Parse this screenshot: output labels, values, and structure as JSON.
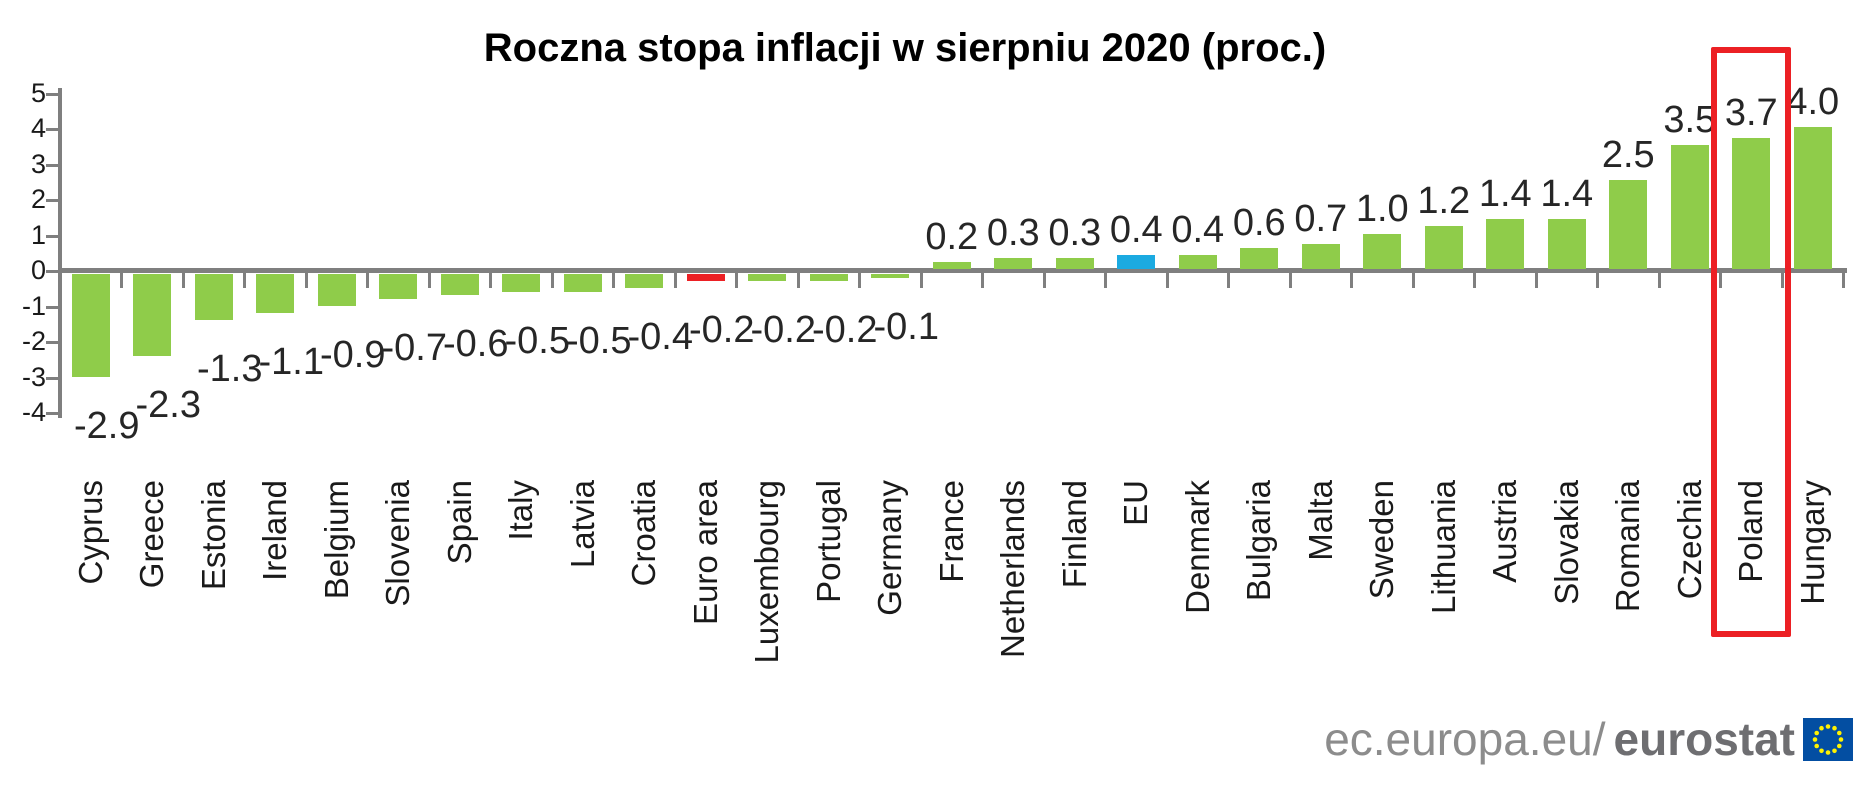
{
  "page": {
    "title": "Roczna stopa inflacji w sierpniu 2020 (proc.)"
  },
  "source_logo": {
    "prefix": "ec.europa.eu/",
    "name": "eurostat",
    "flag_icon": "eu-flag-icon",
    "flag_blue": "#034ea2",
    "flag_star_yellow": "#fff200"
  },
  "chart_data": {
    "type": "bar",
    "title": "Roczna stopa inflacji w sierpniu 2020 (proc.)",
    "xlabel": "",
    "ylabel": "",
    "ylim": [
      -4,
      5
    ],
    "yticks": [
      5,
      4,
      3,
      2,
      1,
      0,
      -1,
      -2,
      -3,
      -4
    ],
    "grid": false,
    "legend": false,
    "value_label_decimals": 1,
    "categories": [
      "Cyprus",
      "Greece",
      "Estonia",
      "Ireland",
      "Belgium",
      "Slovenia",
      "Spain",
      "Italy",
      "Latvia",
      "Croatia",
      "Euro area",
      "Luxembourg",
      "Portugal",
      "Germany",
      "France",
      "Netherlands",
      "Finland",
      "EU",
      "Denmark",
      "Bulgaria",
      "Malta",
      "Sweden",
      "Lithuania",
      "Austria",
      "Slovakia",
      "Romania",
      "Czechia",
      "Poland",
      "Hungary"
    ],
    "values": [
      -2.9,
      -2.3,
      -1.3,
      -1.1,
      -0.9,
      -0.7,
      -0.6,
      -0.5,
      -0.5,
      -0.4,
      -0.2,
      -0.2,
      -0.2,
      -0.1,
      0.2,
      0.3,
      0.3,
      0.4,
      0.4,
      0.6,
      0.7,
      1.0,
      1.2,
      1.4,
      1.4,
      2.5,
      3.5,
      3.7,
      4.0
    ],
    "bar_color_default": "#8fcc4a",
    "bar_color_overrides": {
      "Euro area": "#ec2024",
      "EU": "#1baae1"
    },
    "axis_color": "#7f7f7f",
    "label_color": "#262626",
    "highlighted_category": "Poland",
    "highlight_box_color": "#ec2024"
  }
}
